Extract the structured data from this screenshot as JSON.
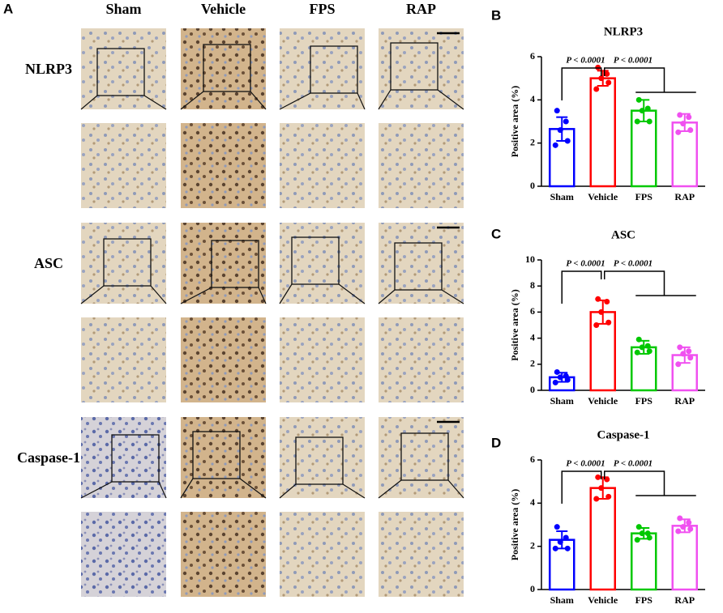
{
  "panel_a": {
    "label": "A",
    "columns": [
      "Sham",
      "Vehicle",
      "FPS",
      "RAP"
    ],
    "rows": [
      "NLRP3",
      "ASC",
      "Caspase-1"
    ]
  },
  "chart_data": [
    {
      "type": "bar",
      "label": "B",
      "title": "NLRP3",
      "ylabel": "Positive area (%)",
      "categories": [
        "Sham",
        "Vehicle",
        "FPS",
        "RAP"
      ],
      "values": [
        2.65,
        5.0,
        3.5,
        2.95
      ],
      "errors": [
        0.55,
        0.35,
        0.5,
        0.4
      ],
      "points": [
        [
          3.5,
          3.0,
          2.6,
          2.1,
          1.9
        ],
        [
          5.5,
          5.2,
          5.0,
          4.8,
          4.5
        ],
        [
          4.0,
          3.6,
          3.5,
          3.0,
          3.0
        ],
        [
          3.3,
          3.2,
          2.9,
          2.6,
          2.5
        ]
      ],
      "colors": [
        "#0000ff",
        "#ff0000",
        "#00c800",
        "#f050f0"
      ],
      "ylim": [
        0,
        6
      ],
      "yticks": [
        0,
        2,
        4,
        6
      ],
      "annotations": [
        "P < 0.0001",
        "P < 0.0001"
      ]
    },
    {
      "type": "bar",
      "label": "C",
      "title": "ASC",
      "ylabel": "Positive area (%)",
      "categories": [
        "Sham",
        "Vehicle",
        "FPS",
        "RAP"
      ],
      "values": [
        1.0,
        6.0,
        3.3,
        2.7
      ],
      "errors": [
        0.35,
        0.9,
        0.5,
        0.6
      ],
      "points": [
        [
          1.4,
          1.1,
          1.0,
          0.8,
          0.6
        ],
        [
          7.0,
          6.8,
          6.0,
          5.2,
          5.0
        ],
        [
          3.9,
          3.4,
          3.3,
          3.0,
          2.9
        ],
        [
          3.3,
          3.0,
          2.8,
          2.5,
          2.0
        ]
      ],
      "colors": [
        "#0000ff",
        "#ff0000",
        "#00c800",
        "#f050f0"
      ],
      "ylim": [
        0,
        10
      ],
      "yticks": [
        0,
        2,
        4,
        6,
        8,
        10
      ],
      "annotations": [
        "P < 0.0001",
        "P < 0.0001"
      ]
    },
    {
      "type": "bar",
      "label": "D",
      "title": "Caspase-1",
      "ylabel": "Positive area (%)",
      "categories": [
        "Sham",
        "Vehicle",
        "FPS",
        "RAP"
      ],
      "values": [
        2.3,
        4.7,
        2.6,
        2.95
      ],
      "errors": [
        0.4,
        0.5,
        0.25,
        0.3
      ],
      "points": [
        [
          2.9,
          2.4,
          2.2,
          1.9,
          1.9
        ],
        [
          5.2,
          5.1,
          4.7,
          4.3,
          4.2
        ],
        [
          2.9,
          2.6,
          2.6,
          2.4,
          2.3
        ],
        [
          3.3,
          3.1,
          2.9,
          2.8,
          2.7
        ]
      ],
      "colors": [
        "#0000ff",
        "#ff0000",
        "#00c800",
        "#f050f0"
      ],
      "ylim": [
        0,
        6
      ],
      "yticks": [
        0,
        2,
        4,
        6
      ],
      "annotations": [
        "P < 0.0001",
        "P < 0.0001"
      ]
    }
  ]
}
